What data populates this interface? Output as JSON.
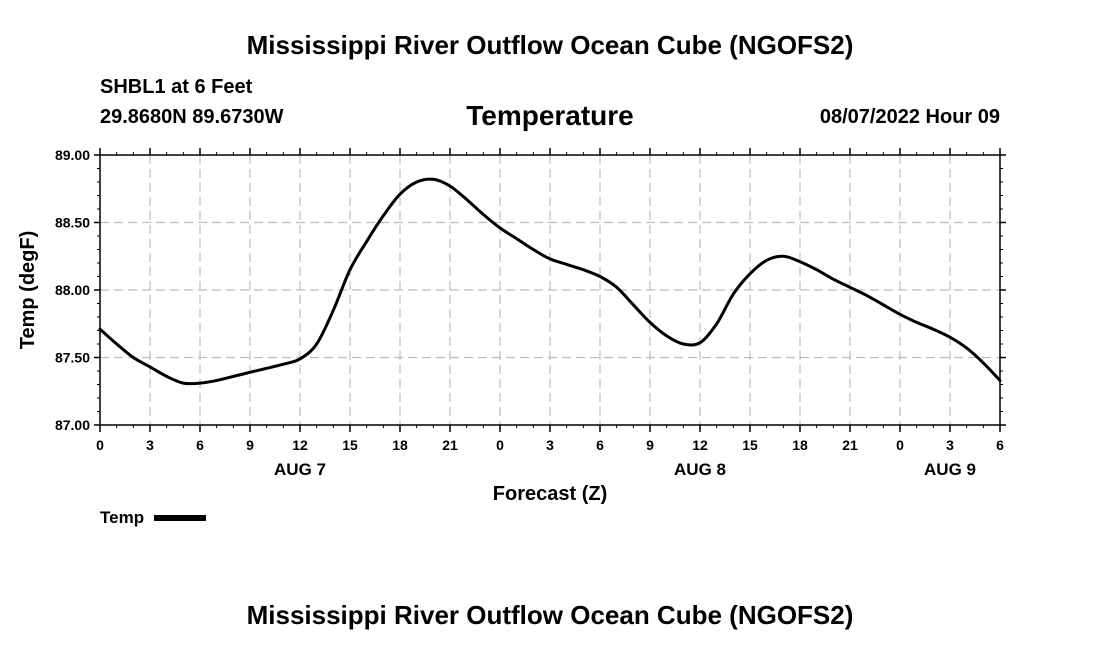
{
  "header": {
    "main_title": "Mississippi River Outflow Ocean Cube (NGOFS2)",
    "station": "SHBL1 at 6 Feet",
    "coords": "29.8680N  89.6730W",
    "timestamp": "08/07/2022 Hour 09"
  },
  "footer": {
    "main_title": "Mississippi River Outflow Ocean Cube (NGOFS2)"
  },
  "chart_data": {
    "type": "line",
    "title": "Temperature",
    "xlabel": "Forecast (Z)",
    "ylabel": "Temp (degF)",
    "ylim": [
      87.0,
      89.0
    ],
    "y_ticks": [
      "87.00",
      "87.50",
      "88.00",
      "88.50",
      "89.00"
    ],
    "xlim": [
      0,
      54
    ],
    "x_tick_labels": [
      "0",
      "3",
      "6",
      "9",
      "12",
      "15",
      "18",
      "21",
      "0",
      "3",
      "6",
      "9",
      "12",
      "15",
      "18",
      "21",
      "0",
      "3",
      "6"
    ],
    "date_labels": [
      {
        "label": "AUG 7",
        "hour": 12
      },
      {
        "label": "AUG 8",
        "hour": 36
      },
      {
        "label": "AUG 9",
        "hour": 51
      }
    ],
    "grid": true,
    "legend": {
      "label": "Temp",
      "placement": "bottom-left"
    },
    "series": [
      {
        "name": "Temp",
        "color": "#000000",
        "x": [
          0,
          1,
          2,
          3,
          4,
          5,
          6,
          7,
          8,
          9,
          10,
          11,
          12,
          13,
          14,
          15,
          16,
          17,
          18,
          19,
          20,
          21,
          22,
          23,
          24,
          25,
          26,
          27,
          28,
          29,
          30,
          31,
          32,
          33,
          34,
          35,
          36,
          37,
          38,
          39,
          40,
          41,
          42,
          43,
          44,
          45,
          46,
          47,
          48,
          49,
          50,
          51,
          52,
          53,
          54
        ],
        "values": [
          87.71,
          87.6,
          87.5,
          87.43,
          87.36,
          87.31,
          87.31,
          87.33,
          87.36,
          87.39,
          87.42,
          87.45,
          87.49,
          87.6,
          87.85,
          88.15,
          88.36,
          88.55,
          88.71,
          88.8,
          88.82,
          88.77,
          88.67,
          88.56,
          88.46,
          88.38,
          88.3,
          88.23,
          88.19,
          88.15,
          88.1,
          88.02,
          87.89,
          87.76,
          87.66,
          87.6,
          87.61,
          87.75,
          87.97,
          88.12,
          88.22,
          88.25,
          88.21,
          88.15,
          88.08,
          88.02,
          87.96,
          87.89,
          87.82,
          87.76,
          87.71,
          87.65,
          87.57,
          87.46,
          87.33
        ]
      }
    ]
  }
}
